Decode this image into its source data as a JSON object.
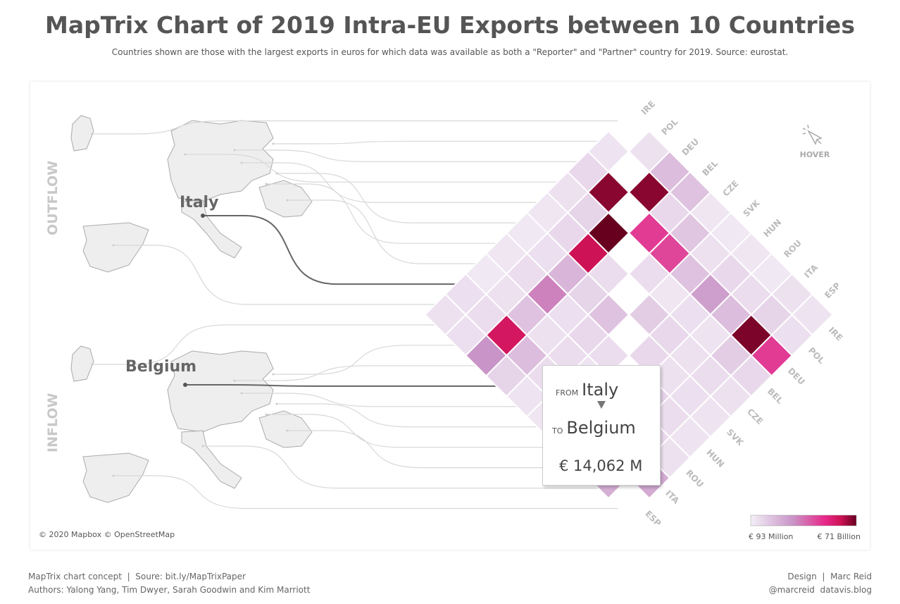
{
  "header": {
    "title": "MapTrix Chart of 2019 Intra-EU Exports between 10 Countries",
    "subtitle": "Countries shown are those with the largest exports in euros for which data was available as both a \"Reporter\" and \"Partner\" country for 2019. Source: eurostat."
  },
  "labels": {
    "outflow": "OUTFLOW",
    "inflow": "INFLOW",
    "hover": "HOVER",
    "attribution": "© 2020 Mapbox  © OpenStreetMap",
    "highlight_from": "Italy",
    "highlight_to": "Belgium"
  },
  "tooltip": {
    "from_label": "FROM",
    "from": "Italy",
    "to_label": "TO",
    "to": "Belgium",
    "value": "€ 14,062 M"
  },
  "legend": {
    "min": "€ 93 Million",
    "max": "€ 71 Billion"
  },
  "footer": {
    "concept": "MapTrix chart concept",
    "source_label": "Soure:",
    "source_link": "bit.ly/MapTrixPaper",
    "authors": "Authors: Yalong Yang, Tim Dwyer, Sarah Goodwin and Kim Marriott",
    "design": "Design",
    "designer": "Marc Reid",
    "handle": "@marcreid",
    "blog": "datavis.blog"
  },
  "colors": {
    "low": "#f3eff7",
    "mid": "#c994c7",
    "high": "#e7298a",
    "higher": "#ce1256",
    "max": "#67001f"
  },
  "chart_data": {
    "type": "heatmap",
    "title": "MapTrix Chart of 2019 Intra-EU Exports between 10 Countries",
    "countries": [
      "IRE",
      "POL",
      "DEU",
      "BEL",
      "CZE",
      "SVK",
      "HUN",
      "ROU",
      "ITA",
      "ESP"
    ],
    "value_scale": "relative intensity 0-1 (€93M to €71B)",
    "matrix": [
      [
        null,
        0.06,
        0.22,
        0.2,
        0.04,
        0.03,
        0.04,
        0.03,
        0.06,
        0.05
      ],
      [
        0.05,
        null,
        0.95,
        0.1,
        0.18,
        0.06,
        0.1,
        0.08,
        0.12,
        0.07
      ],
      [
        0.1,
        0.95,
        null,
        0.65,
        0.62,
        0.2,
        0.35,
        0.22,
        0.97,
        0.65
      ],
      [
        0.06,
        0.12,
        1.0,
        null,
        0.08,
        0.04,
        0.07,
        0.05,
        0.15,
        0.1
      ],
      [
        0.04,
        0.1,
        0.85,
        0.08,
        null,
        0.15,
        0.1,
        0.06,
        0.08,
        0.06
      ],
      [
        0.03,
        0.07,
        0.25,
        0.12,
        0.2,
        null,
        0.1,
        0.06,
        0.07,
        0.05
      ],
      [
        0.04,
        0.08,
        0.45,
        0.07,
        0.1,
        0.08,
        null,
        0.12,
        0.08,
        0.05
      ],
      [
        0.03,
        0.06,
        0.2,
        0.06,
        0.08,
        0.05,
        0.1,
        null,
        0.1,
        0.06
      ],
      [
        0.07,
        0.08,
        0.82,
        0.22,
        0.08,
        0.05,
        0.07,
        0.1,
        null,
        0.3
      ],
      [
        0.06,
        0.07,
        0.4,
        0.12,
        0.05,
        0.04,
        0.05,
        0.06,
        0.28,
        null
      ]
    ]
  }
}
